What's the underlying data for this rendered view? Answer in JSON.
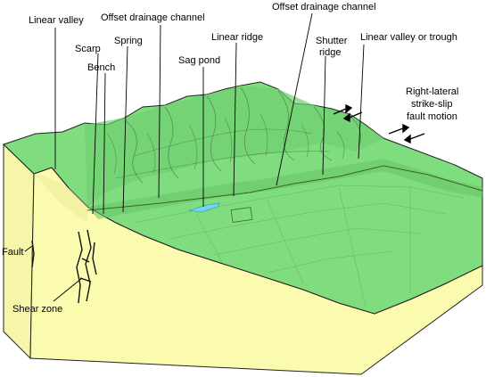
{
  "labels": {
    "linear_valley": "Linear valley",
    "offset_drainage_1": "Offset drainage channel",
    "offset_drainage_2": "Offset drainage channel",
    "scarp": "Scarp",
    "spring": "Spring",
    "bench": "Bench",
    "linear_ridge": "Linear ridge",
    "sag_pond": "Sag pond",
    "shutter_ridge_1": "Shutter",
    "shutter_ridge_2": "ridge",
    "linear_valley_trough": "Linear valley or trough",
    "motion_1": "Right-lateral",
    "motion_2": "strike-slip",
    "motion_3": "fault motion",
    "fault": "Fault",
    "shear_zone": "Shear zone"
  },
  "colors": {
    "land_surface": "#7fdc7f",
    "block_front": "#fbfbb0",
    "block_side": "#f3f3a2",
    "outline": "#222222",
    "sag_pond_water": "#6fd6ee"
  }
}
